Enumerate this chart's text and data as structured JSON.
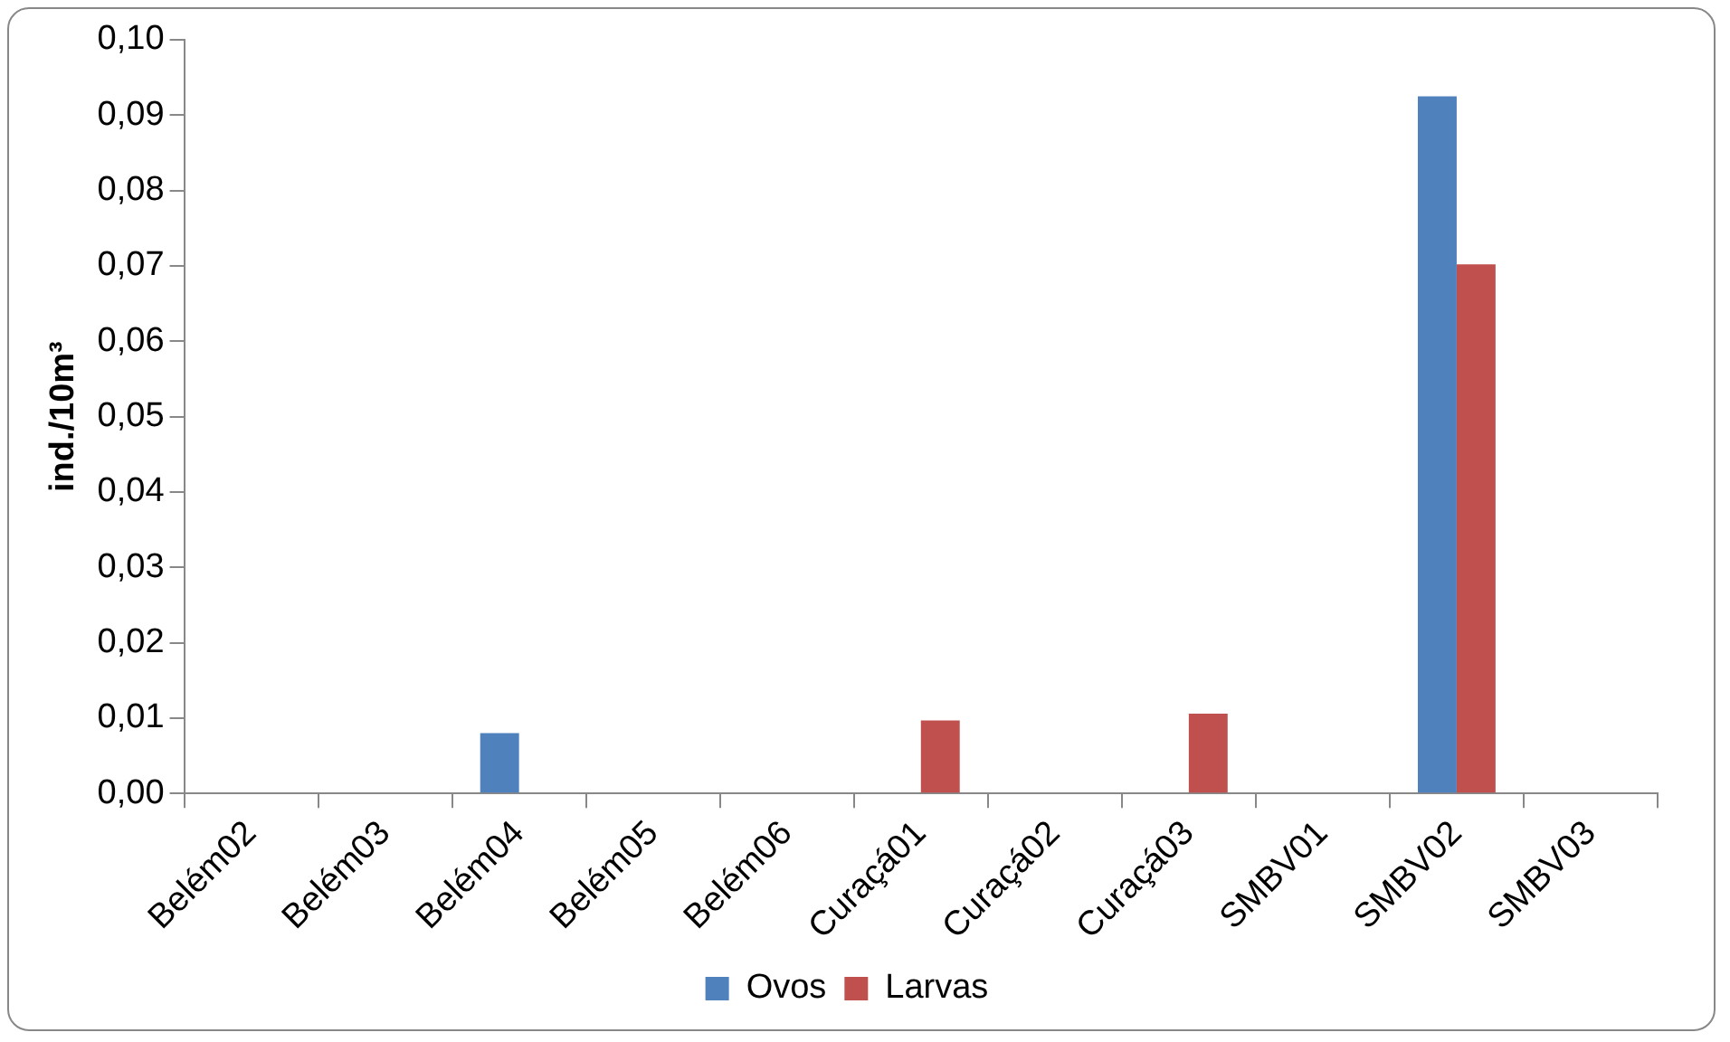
{
  "chart_data": {
    "type": "bar",
    "ylabel": "ind./10m³",
    "categories": [
      "Belém02",
      "Belém03",
      "Belém04",
      "Belém05",
      "Belém06",
      "Curaçá01",
      "Curaçá02",
      "Curaçá03",
      "SMBV01",
      "SMBV02",
      "SMBV03"
    ],
    "series": [
      {
        "name": "Ovos",
        "color": "#4f81bd",
        "values": [
          0,
          0,
          0.008,
          0,
          0,
          0,
          0,
          0,
          0,
          0.0925,
          0
        ]
      },
      {
        "name": "Larvas",
        "color": "#c0504d",
        "values": [
          0,
          0,
          0,
          0,
          0,
          0.0097,
          0,
          0.0106,
          0,
          0.0702,
          0
        ]
      }
    ],
    "ylim": [
      0,
      0.1
    ],
    "yticks": [
      {
        "value": 0,
        "label": "0,00"
      },
      {
        "value": 0.01,
        "label": "0,01"
      },
      {
        "value": 0.02,
        "label": "0,02"
      },
      {
        "value": 0.03,
        "label": "0,03"
      },
      {
        "value": 0.04,
        "label": "0,04"
      },
      {
        "value": 0.05,
        "label": "0,05"
      },
      {
        "value": 0.06,
        "label": "0,06"
      },
      {
        "value": 0.07,
        "label": "0,07"
      },
      {
        "value": 0.08,
        "label": "0,08"
      },
      {
        "value": 0.09,
        "label": "0,09"
      },
      {
        "value": 0.1,
        "label": "0,10"
      }
    ],
    "grid": false,
    "legend": "bottom"
  }
}
